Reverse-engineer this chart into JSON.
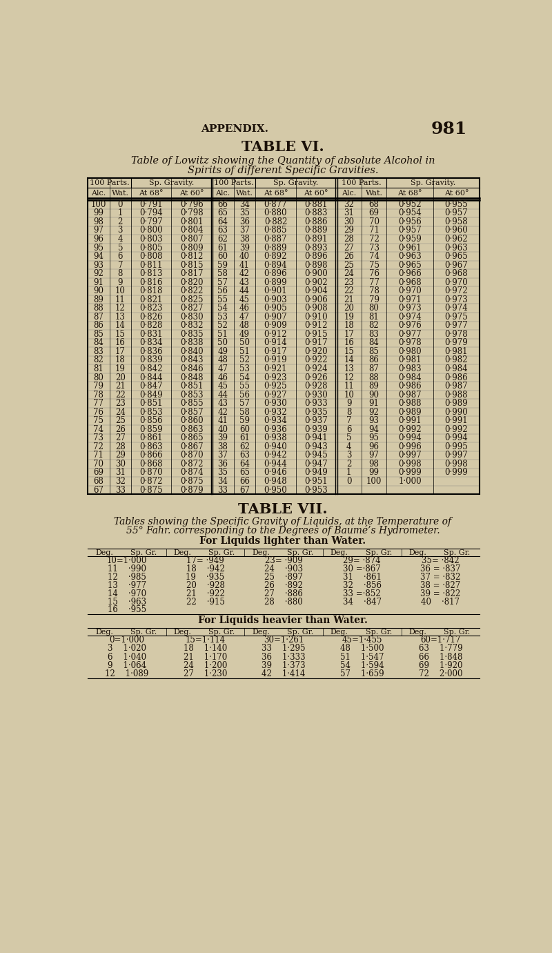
{
  "page_header": "APPENDIX.",
  "page_number": "981",
  "table6_title": "TABLE VI.",
  "table6_subtitle_1": "Table of Lowitz showing the Quantity of absolute Alcohol in",
  "table6_subtitle_2": "Spirits of different Specific Gravities.",
  "table6_data": [
    [
      100,
      0,
      "0·791",
      "0·796",
      66,
      34,
      "0·877",
      "0·881",
      32,
      68,
      "0·952",
      "0·955"
    ],
    [
      99,
      1,
      "0·794",
      "0·798",
      65,
      35,
      "0·880",
      "0·883",
      31,
      69,
      "0·954",
      "0·957"
    ],
    [
      98,
      2,
      "0·797",
      "0·801",
      64,
      36,
      "0·882",
      "0·886",
      30,
      70,
      "0·956",
      "0·958"
    ],
    [
      97,
      3,
      "0·800",
      "0·804",
      63,
      37,
      "0·885",
      "0·889",
      29,
      71,
      "0·957",
      "0·960"
    ],
    [
      96,
      4,
      "0·803",
      "0·807",
      62,
      38,
      "0·887",
      "0·891",
      28,
      72,
      "0·959",
      "0·962"
    ],
    [
      95,
      5,
      "0·805",
      "0·809",
      61,
      39,
      "0·889",
      "0·893",
      27,
      73,
      "0·961",
      "0·963"
    ],
    [
      94,
      6,
      "0·808",
      "0·812",
      60,
      40,
      "0·892",
      "0·896",
      26,
      74,
      "0·963",
      "0·965"
    ],
    [
      93,
      7,
      "0·811",
      "0·815",
      59,
      41,
      "0·894",
      "0·898",
      25,
      75,
      "0·965",
      "0·967"
    ],
    [
      92,
      8,
      "0·813",
      "0·817",
      58,
      42,
      "0·896",
      "0·900",
      24,
      76,
      "0·966",
      "0·968"
    ],
    [
      91,
      9,
      "0·816",
      "0·820",
      57,
      43,
      "0·899",
      "0·902",
      23,
      77,
      "0·968",
      "0·970"
    ],
    [
      90,
      10,
      "0·818",
      "0·822",
      56,
      44,
      "0·901",
      "0·904",
      22,
      78,
      "0·970",
      "0·972"
    ],
    [
      89,
      11,
      "0·821",
      "0·825",
      55,
      45,
      "0·903",
      "0·906",
      21,
      79,
      "0·971",
      "0·973"
    ],
    [
      88,
      12,
      "0·823",
      "0·827",
      54,
      46,
      "0·905",
      "0·908",
      20,
      80,
      "0·973",
      "0·974"
    ],
    [
      87,
      13,
      "0·826",
      "0·830",
      53,
      47,
      "0·907",
      "0·910",
      19,
      81,
      "0·974",
      "0·975"
    ],
    [
      86,
      14,
      "0·828",
      "0·832",
      52,
      48,
      "0·909",
      "0·912",
      18,
      82,
      "0·976",
      "0·977"
    ],
    [
      85,
      15,
      "0·831",
      "0·835",
      51,
      49,
      "0·912",
      "0·915",
      17,
      83,
      "0·977",
      "0·978"
    ],
    [
      84,
      16,
      "0·834",
      "0·838",
      50,
      50,
      "0·914",
      "0·917",
      16,
      84,
      "0·978",
      "0·979"
    ],
    [
      83,
      17,
      "0·836",
      "0·840",
      49,
      51,
      "0·917",
      "0·920",
      15,
      85,
      "0·980",
      "0·981"
    ],
    [
      82,
      18,
      "0·839",
      "0·843",
      48,
      52,
      "0·919",
      "0·922",
      14,
      86,
      "0·981",
      "0·982"
    ],
    [
      81,
      19,
      "0·842",
      "0·846",
      47,
      53,
      "0·921",
      "0·924",
      13,
      87,
      "0·983",
      "0·984"
    ],
    [
      80,
      20,
      "0·844",
      "0·848",
      46,
      54,
      "0·923",
      "0·926",
      12,
      88,
      "0·984",
      "0·986"
    ],
    [
      79,
      21,
      "0·847",
      "0·851",
      45,
      55,
      "0·925",
      "0·928",
      11,
      89,
      "0·986",
      "0·987"
    ],
    [
      78,
      22,
      "0·849",
      "0·853",
      44,
      56,
      "0·927",
      "0·930",
      10,
      90,
      "0·987",
      "0·988"
    ],
    [
      77,
      23,
      "0·851",
      "0·855",
      43,
      57,
      "0·930",
      "0·933",
      9,
      91,
      "0·988",
      "0·989"
    ],
    [
      76,
      24,
      "0·853",
      "0·857",
      42,
      58,
      "0·932",
      "0·935",
      8,
      92,
      "0·989",
      "0·990"
    ],
    [
      75,
      25,
      "0·856",
      "0·860",
      41,
      59,
      "0·934",
      "0·937",
      7,
      93,
      "0·991",
      "0·991"
    ],
    [
      74,
      26,
      "0·859",
      "0·863",
      40,
      60,
      "0·936",
      "0·939",
      6,
      94,
      "0·992",
      "0·992"
    ],
    [
      73,
      27,
      "0·861",
      "0·865",
      39,
      61,
      "0·938",
      "0·941",
      5,
      95,
      "0·994",
      "0·994"
    ],
    [
      72,
      28,
      "0·863",
      "0·867",
      38,
      62,
      "0·940",
      "0·943",
      4,
      96,
      "0·996",
      "0·995"
    ],
    [
      71,
      29,
      "0·866",
      "0·870",
      37,
      63,
      "0·942",
      "0·945",
      3,
      97,
      "0·997",
      "0·997"
    ],
    [
      70,
      30,
      "0·868",
      "0·872",
      36,
      64,
      "0·944",
      "0·947",
      2,
      98,
      "0·998",
      "0·998"
    ],
    [
      69,
      31,
      "0·870",
      "0·874",
      35,
      65,
      "0·946",
      "0·949",
      1,
      99,
      "0·999",
      "0·999"
    ],
    [
      68,
      32,
      "0·872",
      "0·875",
      34,
      66,
      "0·948",
      "0·951",
      0,
      100,
      "1·000",
      ""
    ],
    [
      67,
      33,
      "0·875",
      "0·879",
      33,
      67,
      "0·950",
      "0·953",
      "",
      "",
      "",
      ""
    ]
  ],
  "table7_title": "TABLE VII.",
  "table7_subtitle_1": "Tables showing the Specific Gravity of Liquids, at the Temperature of",
  "table7_subtitle_2": "55° Fahr. corresponding to the Degrees of Baumé’s Hydrometer.",
  "table7_light_title": "For Liquids lighter than Water.",
  "table7_light_data": [
    [
      "10=1·000",
      "17= ·949",
      "23= ·909",
      "29= ·874",
      "35= ·842"
    ],
    [
      "11    ·990",
      "18    ·942",
      "24    ·903",
      "30 =·867",
      "36 = ·837"
    ],
    [
      "12    ·985",
      "19    ·935",
      "25    ·897",
      "31    ·861",
      "37 = ·832"
    ],
    [
      "13    ·977",
      "20    ·928",
      "26    ·892",
      "32    ·856",
      "38 = ·827"
    ],
    [
      "14    ·970",
      "21    ·922",
      "27    ·886",
      "33 =·852",
      "39 = ·822"
    ],
    [
      "15    ·963",
      "22    ·915",
      "28    ·880",
      "34    ·847",
      "40    ·817"
    ],
    [
      "16    ·955",
      "",
      "",
      "",
      ""
    ]
  ],
  "table7_heavy_title": "For Liquids heavier than Water.",
  "table7_heavy_data": [
    [
      "0=1·000",
      "15=1·114",
      "30=1·261",
      "45=1·455",
      "60=1·717"
    ],
    [
      "3    1·020",
      "18    1·140",
      "33    1·295",
      "48    1·500",
      "63    1·779"
    ],
    [
      "6    1·040",
      "21    1·170",
      "36    1·333",
      "51    1·547",
      "66    1·848"
    ],
    [
      "9    1·064",
      "24    1·200",
      "39    1·373",
      "54    1·594",
      "69    1·920"
    ],
    [
      "12    1·089",
      "27    1·230",
      "42    1·414",
      "57    1·659",
      "72    2·000"
    ]
  ],
  "bg_color": "#d4c9a8",
  "text_color": "#1a1008"
}
